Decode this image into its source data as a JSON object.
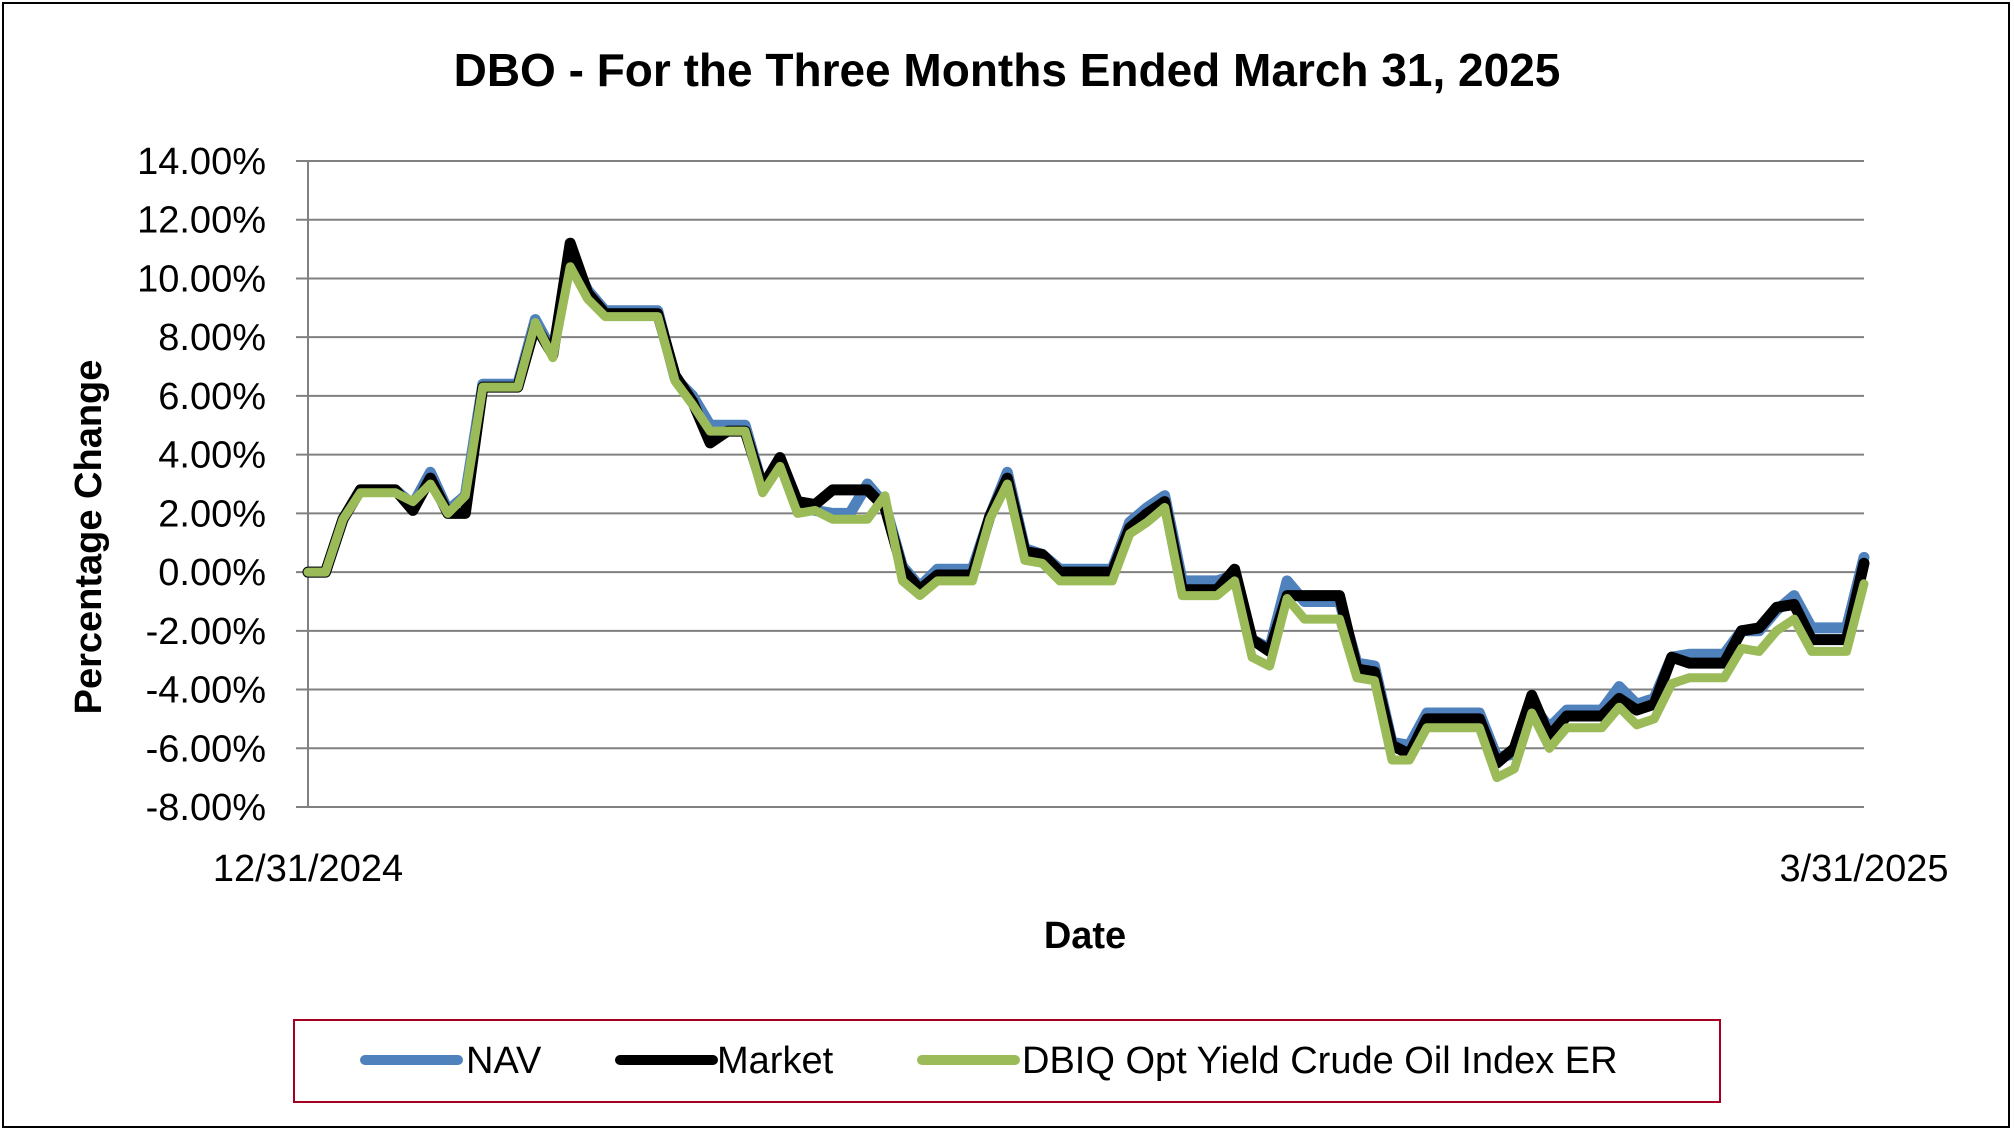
{
  "chart_data": {
    "type": "line",
    "title": "DBO - For the Three Months Ended March 31, 2025",
    "xlabel": "Date",
    "ylabel": "Percentage Change",
    "x_tick_labels": [
      "12/31/2024",
      "3/31/2025"
    ],
    "x_range": [
      "12/31/2024",
      "3/31/2025"
    ],
    "y_tick_labels": [
      "14.00%",
      "12.00%",
      "10.00%",
      "8.00%",
      "6.00%",
      "4.00%",
      "2.00%",
      "0.00%",
      "-2.00%",
      "-4.00%",
      "-6.00%",
      "-8.00%"
    ],
    "ylim": [
      -8,
      14
    ],
    "y_unit": "%",
    "grid": true,
    "legend_position": "bottom",
    "series": [
      {
        "name": "NAV",
        "color": "#4f81bd",
        "values": [
          0,
          0,
          1.8,
          2.8,
          2.8,
          2.8,
          2.3,
          3.4,
          2.1,
          2.6,
          6.4,
          6.4,
          6.4,
          8.6,
          7.5,
          10.8,
          9.6,
          8.9,
          8.9,
          8.9,
          8.9,
          6.6,
          6.0,
          5.0,
          5.0,
          5.0,
          2.9,
          3.9,
          2.3,
          2.1,
          2.0,
          2.0,
          3.0,
          2.3,
          0.2,
          -0.5,
          0.1,
          0.1,
          0.1,
          1.9,
          3.4,
          0.8,
          0.6,
          0.1,
          0.1,
          0.1,
          0.1,
          1.7,
          2.2,
          2.6,
          -0.3,
          -0.3,
          -0.3,
          -0.1,
          -2.3,
          -2.6,
          -0.3,
          -1.0,
          -1.0,
          -1.0,
          -3.1,
          -3.2,
          -5.8,
          -5.9,
          -4.8,
          -4.8,
          -4.8,
          -4.8,
          -6.3,
          -6.2,
          -4.5,
          -5.3,
          -4.7,
          -4.7,
          -4.7,
          -3.9,
          -4.5,
          -4.3,
          -2.9,
          -2.8,
          -2.8,
          -2.8,
          -2.0,
          -2.0,
          -1.3,
          -0.8,
          -1.9,
          -1.9,
          -1.9,
          0.5
        ]
      },
      {
        "name": "Market",
        "color": "#000000",
        "values": [
          0,
          0,
          1.8,
          2.8,
          2.8,
          2.8,
          2.1,
          3.2,
          2.0,
          2.0,
          6.3,
          6.3,
          6.3,
          8.4,
          7.4,
          11.2,
          9.5,
          8.8,
          8.8,
          8.8,
          8.8,
          6.7,
          5.8,
          4.4,
          4.8,
          4.8,
          2.9,
          3.9,
          2.4,
          2.3,
          2.8,
          2.8,
          2.8,
          2.2,
          0.1,
          -0.6,
          -0.1,
          -0.1,
          -0.1,
          1.9,
          3.2,
          0.7,
          0.6,
          0.0,
          0.0,
          0.0,
          0.0,
          1.5,
          2.0,
          2.4,
          -0.6,
          -0.6,
          -0.6,
          0.1,
          -2.3,
          -2.7,
          -0.8,
          -0.8,
          -0.8,
          -0.8,
          -3.3,
          -3.4,
          -5.9,
          -6.2,
          -5.0,
          -5.0,
          -5.0,
          -5.0,
          -6.5,
          -6.0,
          -4.2,
          -5.6,
          -4.9,
          -4.9,
          -4.9,
          -4.3,
          -4.7,
          -4.5,
          -2.9,
          -3.1,
          -3.1,
          -3.1,
          -2.0,
          -1.9,
          -1.2,
          -1.1,
          -2.3,
          -2.3,
          -2.3,
          0.3
        ]
      },
      {
        "name": "DBIQ Opt Yield Crude Oil Index ER",
        "color": "#9bbb59",
        "values": [
          0,
          0,
          1.8,
          2.7,
          2.7,
          2.7,
          2.4,
          3.0,
          2.0,
          2.6,
          6.3,
          6.3,
          6.3,
          8.5,
          7.3,
          10.4,
          9.3,
          8.7,
          8.7,
          8.7,
          8.7,
          6.5,
          5.7,
          4.8,
          4.8,
          4.8,
          2.7,
          3.6,
          2.0,
          2.1,
          1.8,
          1.8,
          1.8,
          2.6,
          -0.3,
          -0.8,
          -0.3,
          -0.3,
          -0.3,
          1.8,
          3.0,
          0.4,
          0.3,
          -0.3,
          -0.3,
          -0.3,
          -0.3,
          1.3,
          1.7,
          2.2,
          -0.8,
          -0.8,
          -0.8,
          -0.3,
          -2.9,
          -3.2,
          -0.9,
          -1.6,
          -1.6,
          -1.6,
          -3.6,
          -3.7,
          -6.4,
          -6.4,
          -5.3,
          -5.3,
          -5.3,
          -5.3,
          -7.0,
          -6.7,
          -4.8,
          -6.0,
          -5.3,
          -5.3,
          -5.3,
          -4.6,
          -5.2,
          -5.0,
          -3.8,
          -3.6,
          -3.6,
          -3.6,
          -2.6,
          -2.7,
          -2.0,
          -1.6,
          -2.7,
          -2.7,
          -2.7,
          -0.4
        ]
      }
    ]
  }
}
